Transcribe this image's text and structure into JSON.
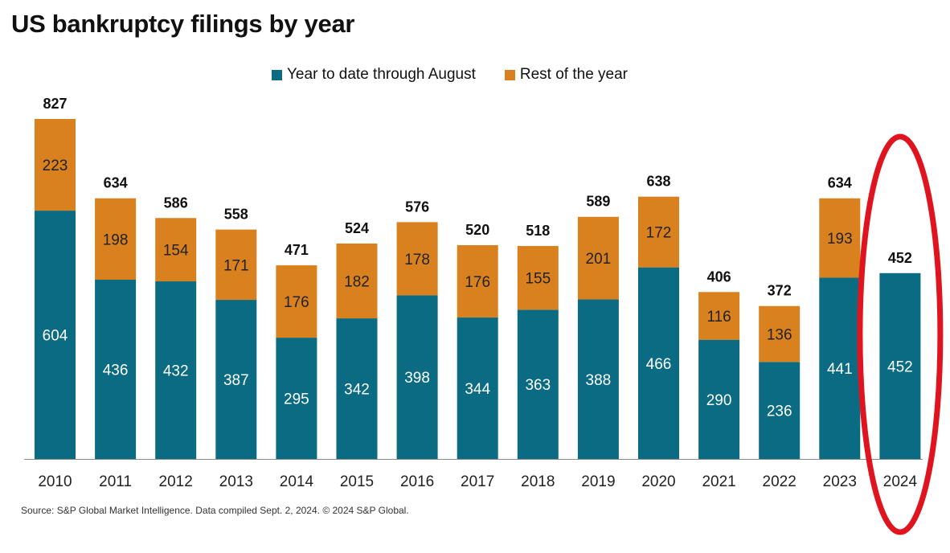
{
  "chart_data": {
    "type": "bar",
    "stacked": true,
    "title": "US bankruptcy filings by year",
    "categories": [
      "2010",
      "2011",
      "2012",
      "2013",
      "2014",
      "2015",
      "2016",
      "2017",
      "2018",
      "2019",
      "2020",
      "2021",
      "2022",
      "2023",
      "2024"
    ],
    "series": [
      {
        "name": "Year to date through August",
        "color": "#0b6b83",
        "values": [
          604,
          436,
          432,
          387,
          295,
          342,
          398,
          344,
          363,
          388,
          466,
          290,
          236,
          441,
          452
        ]
      },
      {
        "name": "Rest of the year",
        "color": "#d9801f",
        "values": [
          223,
          198,
          154,
          171,
          176,
          182,
          178,
          176,
          155,
          201,
          172,
          116,
          136,
          193,
          null
        ]
      }
    ],
    "totals": [
      827,
      634,
      586,
      558,
      471,
      524,
      576,
      520,
      518,
      589,
      638,
      406,
      372,
      634,
      452
    ],
    "ylim": [
      0,
      827
    ],
    "legend_position": "top",
    "grid": false,
    "highlight": {
      "category": "2024",
      "shape": "ellipse",
      "color": "#e0141e"
    },
    "source": "Source: S&P Global Market Intelligence.     Data compiled Sept. 2, 2024.     © 2024 S&P Global."
  }
}
